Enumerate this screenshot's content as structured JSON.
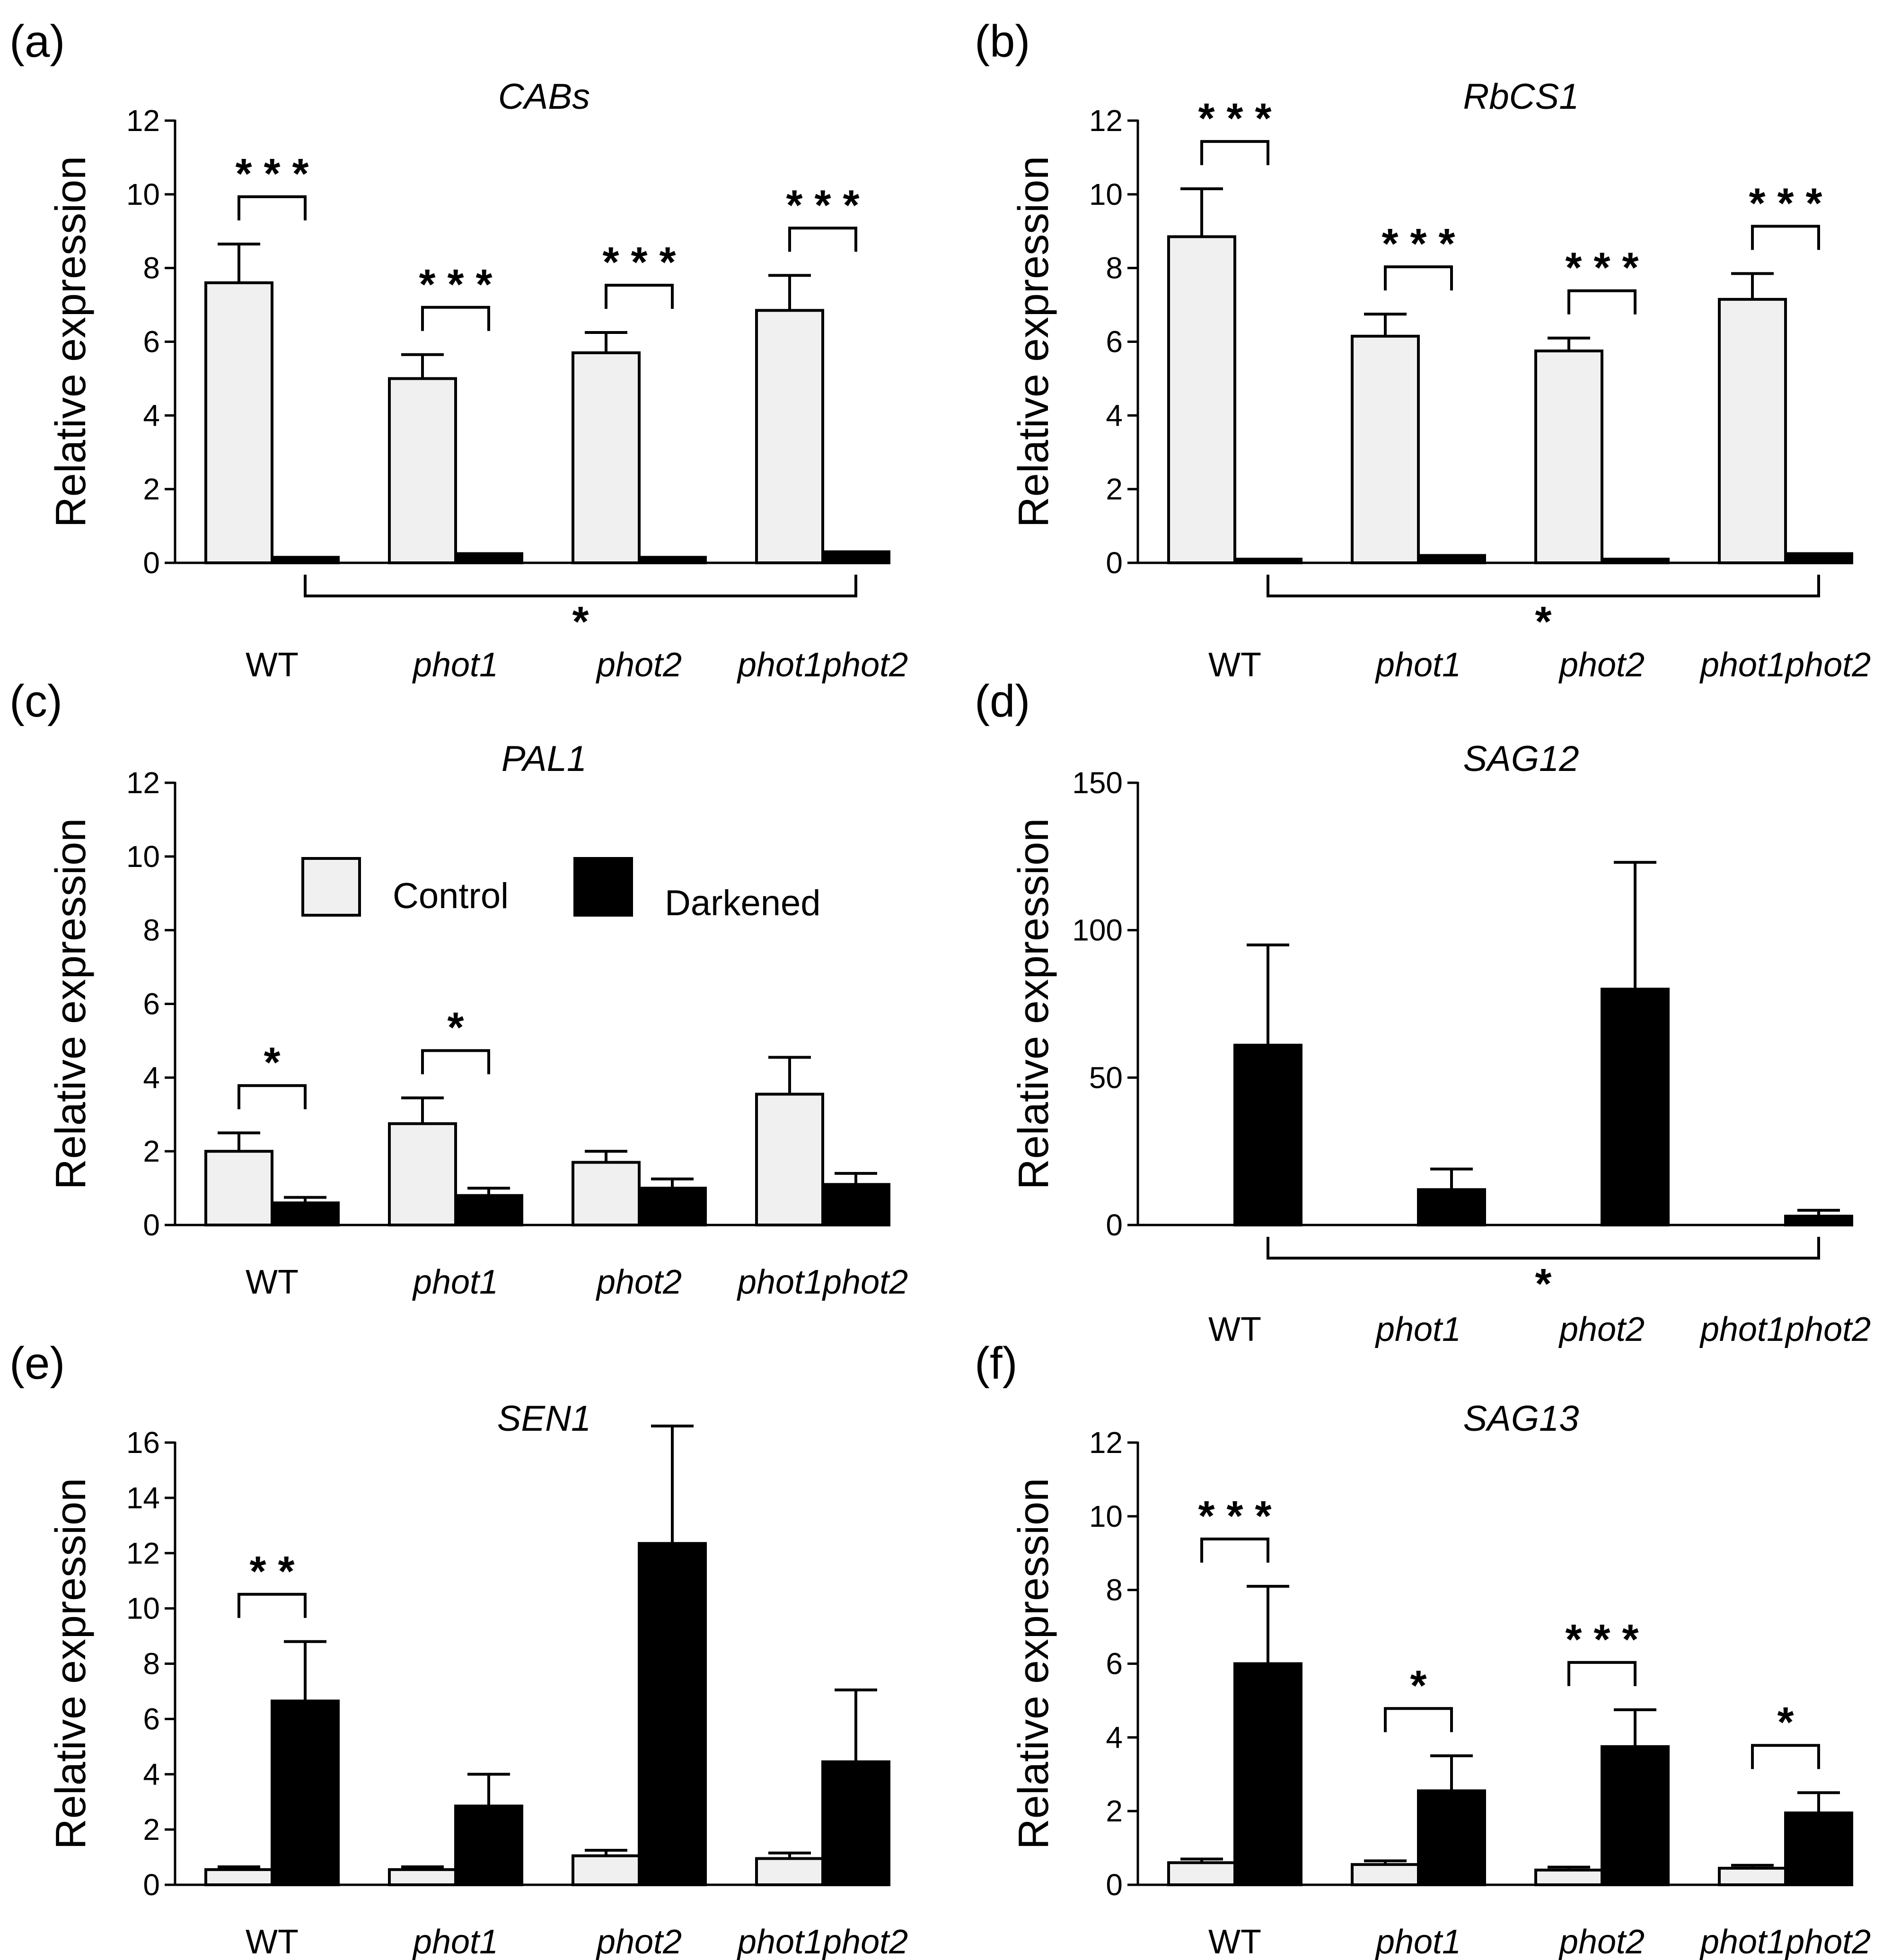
{
  "legend": {
    "items": [
      {
        "label": "Control",
        "color": "#f0f0f0"
      },
      {
        "label": "Darkened",
        "color": "#000000"
      }
    ]
  },
  "colors": {
    "control": "#f0f0f0",
    "darkened": "#000000",
    "stroke": "#000000"
  },
  "chart_data": [
    {
      "panel": "(a)",
      "title": "CABs",
      "type": "bar",
      "ylabel": "Relative expression",
      "ylim": [
        0,
        12
      ],
      "yticks": [
        0,
        2,
        4,
        6,
        8,
        10,
        12
      ],
      "categories": [
        "WT",
        "phot1",
        "phot2",
        "phot1phot2"
      ],
      "categories_italic": [
        false,
        true,
        true,
        true
      ],
      "series": [
        {
          "name": "Control",
          "values": [
            7.6,
            5.0,
            5.7,
            6.85
          ],
          "errors": [
            1.05,
            0.65,
            0.55,
            0.95
          ]
        },
        {
          "name": "Darkened",
          "values": [
            0.15,
            0.25,
            0.15,
            0.3
          ],
          "errors": [
            0,
            0,
            0,
            0
          ]
        }
      ],
      "sig_pairs": [
        {
          "group": 0,
          "label": "* * *"
        },
        {
          "group": 1,
          "label": "* * *"
        },
        {
          "group": 2,
          "label": "* * *"
        },
        {
          "group": 3,
          "label": "* * *"
        }
      ],
      "sig_bottom": {
        "from": 0,
        "to": 3,
        "label": "*"
      }
    },
    {
      "panel": "(b)",
      "title": "RbCS1",
      "type": "bar",
      "ylabel": "Relative expression",
      "ylim": [
        0,
        12
      ],
      "yticks": [
        0,
        2,
        4,
        6,
        8,
        10,
        12
      ],
      "categories": [
        "WT",
        "phot1",
        "phot2",
        "phot1phot2"
      ],
      "categories_italic": [
        false,
        true,
        true,
        true
      ],
      "series": [
        {
          "name": "Control",
          "values": [
            8.85,
            6.15,
            5.75,
            7.15
          ],
          "errors": [
            1.3,
            0.6,
            0.35,
            0.7
          ]
        },
        {
          "name": "Darkened",
          "values": [
            0.1,
            0.2,
            0.1,
            0.25
          ],
          "errors": [
            0,
            0,
            0,
            0
          ]
        }
      ],
      "sig_pairs": [
        {
          "group": 0,
          "label": "* * *"
        },
        {
          "group": 1,
          "label": "* * *"
        },
        {
          "group": 2,
          "label": "* * *"
        },
        {
          "group": 3,
          "label": "* * *"
        }
      ],
      "sig_bottom": {
        "from": 0,
        "to": 3,
        "label": "*"
      }
    },
    {
      "panel": "(c)",
      "title": "PAL1",
      "type": "bar",
      "ylabel": "Relative expression",
      "ylim": [
        0,
        12
      ],
      "yticks": [
        0,
        2,
        4,
        6,
        8,
        10,
        12
      ],
      "categories": [
        "WT",
        "phot1",
        "phot2",
        "phot1phot2"
      ],
      "categories_italic": [
        false,
        true,
        true,
        true
      ],
      "series": [
        {
          "name": "Control",
          "values": [
            2.0,
            2.75,
            1.7,
            3.55
          ],
          "errors": [
            0.5,
            0.7,
            0.3,
            1.0
          ]
        },
        {
          "name": "Darkened",
          "values": [
            0.6,
            0.8,
            1.0,
            1.1
          ],
          "errors": [
            0.15,
            0.2,
            0.25,
            0.3
          ]
        }
      ],
      "sig_pairs": [
        {
          "group": 0,
          "label": "*"
        },
        {
          "group": 1,
          "label": "*"
        }
      ],
      "sig_bottom": null,
      "show_legend": true
    },
    {
      "panel": "(d)",
      "title": "SAG12",
      "type": "bar",
      "ylabel": "Relative expression",
      "ylim": [
        0,
        150
      ],
      "yticks": [
        0,
        50,
        100,
        150
      ],
      "categories": [
        "WT",
        "phot1",
        "phot2",
        "phot1phot2"
      ],
      "categories_italic": [
        false,
        true,
        true,
        true
      ],
      "series": [
        {
          "name": "Control",
          "values": [
            0,
            0,
            0,
            0
          ],
          "errors": [
            0,
            0,
            0,
            0
          ]
        },
        {
          "name": "Darkened",
          "values": [
            61,
            12,
            80,
            3
          ],
          "errors": [
            34,
            7,
            43,
            2
          ]
        }
      ],
      "sig_pairs": [],
      "sig_bottom": {
        "from": 0,
        "to": 3,
        "label": "*"
      }
    },
    {
      "panel": "(e)",
      "title": "SEN1",
      "type": "bar",
      "ylabel": "Relative expression",
      "ylim": [
        0,
        16
      ],
      "yticks": [
        0,
        2,
        4,
        6,
        8,
        10,
        12,
        14,
        16
      ],
      "categories": [
        "WT",
        "phot1",
        "phot2",
        "phot1phot2"
      ],
      "categories_italic": [
        false,
        true,
        true,
        true
      ],
      "series": [
        {
          "name": "Control",
          "values": [
            0.55,
            0.55,
            1.05,
            0.95
          ],
          "errors": [
            0.1,
            0.1,
            0.2,
            0.2
          ]
        },
        {
          "name": "Darkened",
          "values": [
            6.65,
            2.85,
            12.35,
            4.45
          ],
          "errors": [
            2.15,
            1.15,
            4.25,
            2.6
          ]
        }
      ],
      "sig_pairs": [
        {
          "group": 0,
          "label": "* *"
        }
      ],
      "sig_bottom": null
    },
    {
      "panel": "(f)",
      "title": "SAG13",
      "type": "bar",
      "ylabel": "Relative expression",
      "ylim": [
        0,
        12
      ],
      "yticks": [
        0,
        2,
        4,
        6,
        8,
        10,
        12
      ],
      "categories": [
        "WT",
        "phot1",
        "phot2",
        "phot1phot2"
      ],
      "categories_italic": [
        false,
        true,
        true,
        true
      ],
      "series": [
        {
          "name": "Control",
          "values": [
            0.6,
            0.55,
            0.4,
            0.45
          ],
          "errors": [
            0.1,
            0.1,
            0.08,
            0.08
          ]
        },
        {
          "name": "Darkened",
          "values": [
            6.0,
            2.55,
            3.75,
            1.95
          ],
          "errors": [
            2.1,
            0.95,
            1.0,
            0.55
          ]
        }
      ],
      "sig_pairs": [
        {
          "group": 0,
          "label": "* * *"
        },
        {
          "group": 1,
          "label": "*"
        },
        {
          "group": 2,
          "label": "* * *"
        },
        {
          "group": 3,
          "label": "*"
        }
      ],
      "sig_bottom": null
    }
  ]
}
